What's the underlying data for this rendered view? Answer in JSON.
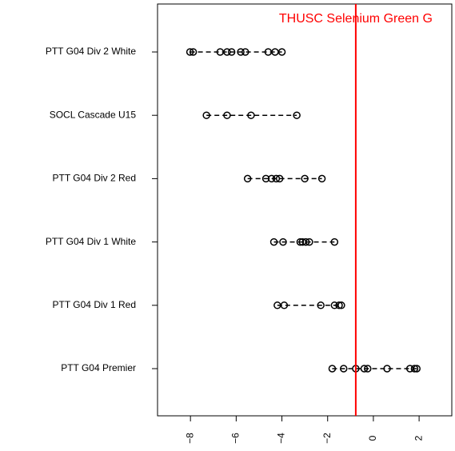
{
  "chart_data": {
    "type": "strip",
    "categories": [
      "PTT G04 Div 2 White",
      "SOCL Cascade U15",
      "PTT G04 Div 2 Red",
      "PTT G04 Div 1 White",
      "PTT G04 Div 1 Red",
      "PTT G04 Premier"
    ],
    "values": [
      [
        -8.02,
        -7.88,
        -6.7,
        -6.4,
        -6.2,
        -5.8,
        -5.6,
        -4.6,
        -4.3,
        -4.0
      ],
      [
        -7.3,
        -6.4,
        -5.35,
        -3.35
      ],
      [
        -5.5,
        -4.7,
        -4.45,
        -4.25,
        -4.1,
        -3.0,
        -2.25
      ],
      [
        -4.35,
        -3.95,
        -3.2,
        -3.1,
        -2.95,
        -2.8,
        -1.7
      ],
      [
        -4.2,
        -3.9,
        -2.3,
        -1.7,
        -1.5,
        -1.4
      ],
      [
        -1.8,
        -1.3,
        -0.77,
        -0.4,
        -0.25,
        0.6,
        1.6,
        1.8,
        1.9
      ]
    ],
    "color": "#000000",
    "xlim": [
      -9.44,
      3.57
    ],
    "xticks": [
      {
        "value": -8,
        "label": "−8"
      },
      {
        "value": -6,
        "label": "−6"
      },
      {
        "value": -4,
        "label": "−4"
      },
      {
        "value": -2,
        "label": "−2"
      },
      0,
      2
    ],
    "reference_line": {
      "value": -0.77,
      "label": "THUSC Selenium Green G",
      "color": "#ff0000"
    }
  }
}
